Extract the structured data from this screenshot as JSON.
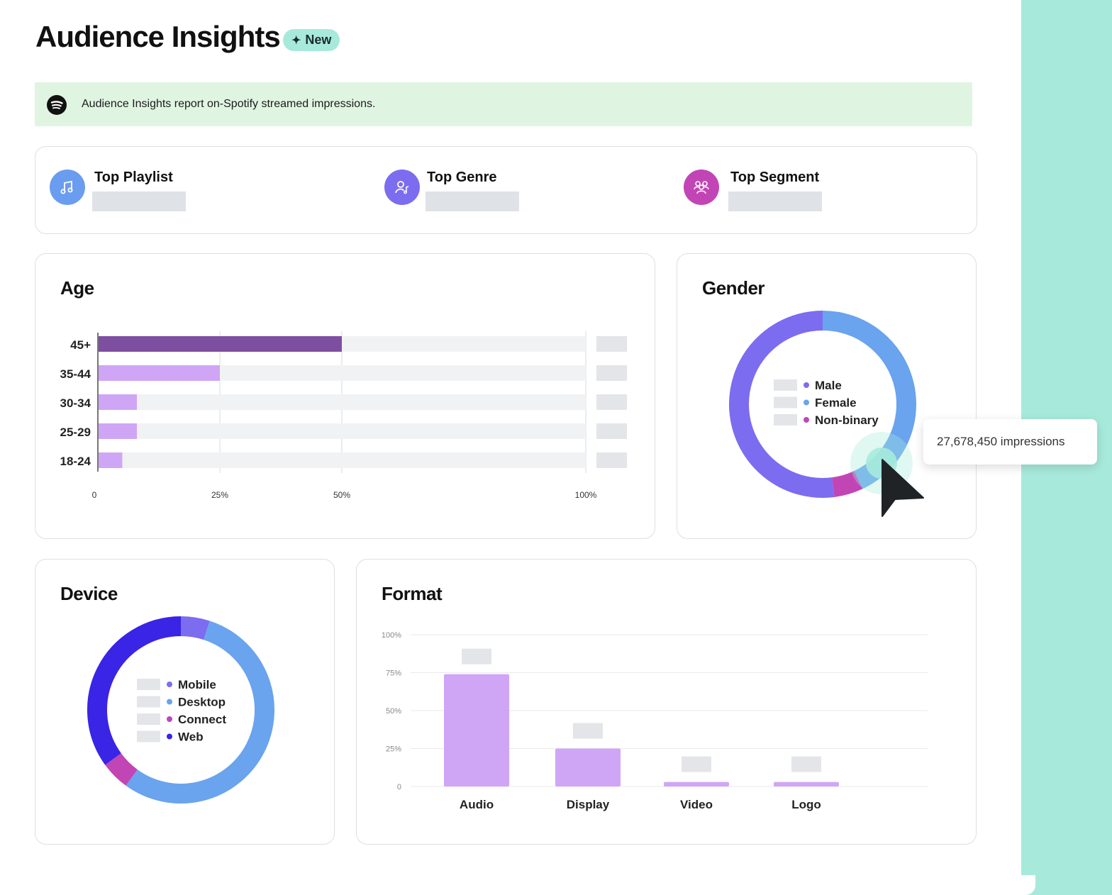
{
  "page": {
    "title": "Audience Insights",
    "badge": "New"
  },
  "banner": {
    "text": "Audience Insights report on-Spotify streamed impressions."
  },
  "tops": [
    {
      "label": "Top Playlist",
      "icon": "music-note-icon",
      "color": "#6a9df0"
    },
    {
      "label": "Top Genre",
      "icon": "person-music-icon",
      "color": "#7c6cf0"
    },
    {
      "label": "Top Segment",
      "icon": "group-icon",
      "color": "#c245b6"
    }
  ],
  "age": {
    "title": "Age",
    "chart_data": {
      "type": "bar",
      "orientation": "horizontal",
      "categories": [
        "45+",
        "35-44",
        "30-34",
        "25-29",
        "18-24"
      ],
      "values": [
        50,
        25,
        8,
        8,
        5
      ],
      "tick_labels": [
        "0",
        "25%",
        "50%",
        "100%"
      ],
      "colors": [
        "#7e4fa1",
        "#cfa6f5",
        "#cfa6f5",
        "#cfa6f5",
        "#cfa6f5"
      ]
    }
  },
  "gender": {
    "title": "Gender",
    "legend": [
      {
        "label": "Male",
        "color": "#7c6cf0"
      },
      {
        "label": "Female",
        "color": "#6aa3ee"
      },
      {
        "label": "Non-binary",
        "color": "#c245b6"
      }
    ],
    "chart_data": {
      "type": "pie",
      "series": [
        {
          "name": "Female",
          "value": 43,
          "color": "#6aa3ee"
        },
        {
          "name": "Non-binary",
          "value": 5,
          "color": "#c245b6"
        },
        {
          "name": "Male",
          "value": 52,
          "color": "#7c6cf0"
        }
      ]
    },
    "tooltip": "27,678,450 impressions"
  },
  "device": {
    "title": "Device",
    "legend": [
      {
        "label": "Mobile",
        "color": "#7c6cf0"
      },
      {
        "label": "Desktop",
        "color": "#6aa3ee"
      },
      {
        "label": "Connect",
        "color": "#c245b6"
      },
      {
        "label": "Web",
        "color": "#3a24e6"
      }
    ],
    "chart_data": {
      "type": "pie",
      "series": [
        {
          "name": "Mobile",
          "value": 5,
          "color": "#7c6cf0"
        },
        {
          "name": "Desktop",
          "value": 55,
          "color": "#6aa3ee"
        },
        {
          "name": "Connect",
          "value": 5,
          "color": "#c245b6"
        },
        {
          "name": "Web",
          "value": 35,
          "color": "#3a24e6"
        }
      ]
    }
  },
  "format": {
    "title": "Format",
    "chart_data": {
      "type": "bar",
      "categories": [
        "Audio",
        "Display",
        "Video",
        "Logo"
      ],
      "values": [
        74,
        25,
        3,
        3
      ],
      "ytick_labels": [
        "100%",
        "75%",
        "50%",
        "25%",
        "0"
      ],
      "ylim": [
        0,
        100
      ],
      "color": "#cfa6f5"
    }
  }
}
